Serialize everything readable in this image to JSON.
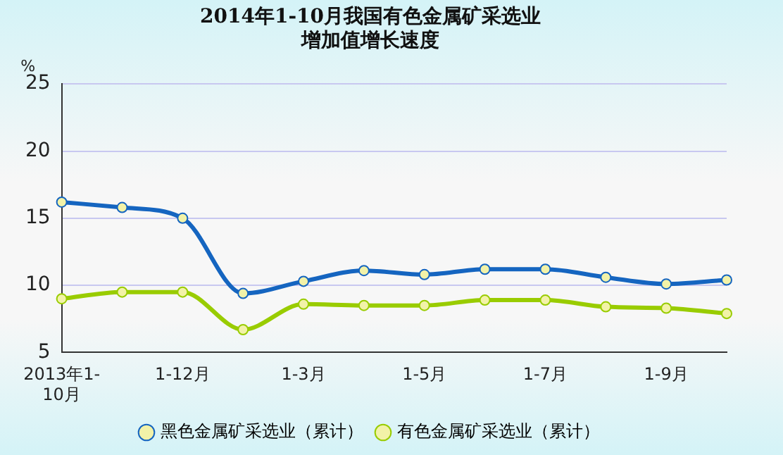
{
  "chart_data": {
    "type": "line",
    "title": "2014年1-10月我国有色金属矿采选业增加值增长速度",
    "ylabel": "%",
    "categories": [
      "2013年1-10月",
      null,
      "1-12月",
      null,
      "1-3月",
      null,
      "1-5月",
      null,
      "1-7月",
      null,
      "1-9月",
      null
    ],
    "series": [
      {
        "name": "黑色金属矿采选业（累计）",
        "color": "#1565c0",
        "values": [
          16.2,
          15.8,
          15.0,
          9.4,
          10.3,
          11.1,
          10.8,
          11.2,
          11.2,
          10.6,
          10.1,
          10.4
        ]
      },
      {
        "name": "有色金属矿采选业（累计）",
        "color": "#99cc00",
        "values": [
          9.0,
          9.5,
          9.5,
          6.7,
          8.6,
          8.5,
          8.5,
          8.9,
          8.9,
          8.4,
          8.3,
          7.9
        ]
      }
    ],
    "ylim": [
      5,
      25
    ],
    "yticks": [
      5,
      10,
      15,
      20,
      25
    ],
    "grid": "y",
    "legend": "bottom",
    "marker": "circle",
    "line_style": "solid"
  }
}
